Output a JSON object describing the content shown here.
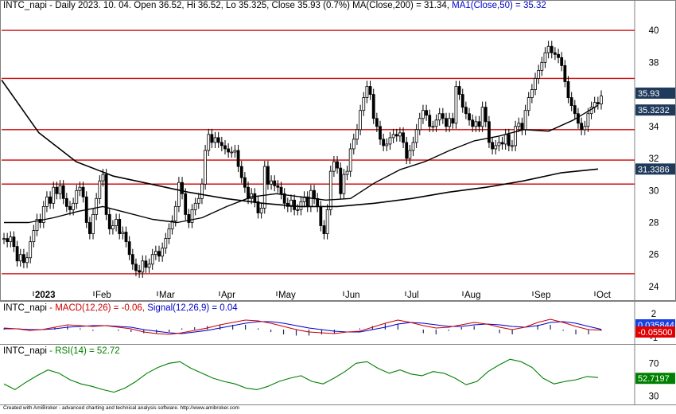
{
  "header": {
    "ticker": "INTC_napi",
    "text_main": " - Daily 2023. 10. 04. Open 36.52, Hi 36.52, Lo 35.325, Close 35.93 (0.7%) MA(Close,200) = 31.34, ",
    "text_ma1": "MA1(Close,50) = 35.32"
  },
  "macd_header": {
    "ticker": "INTC_napi",
    "macd_text": " - MACD(12,26) = -0.06, ",
    "signal_text": "Signal(12,26,9) = 0.04"
  },
  "rsi_header": {
    "ticker": "INTC_napi",
    "rsi_text": " - RSI(14) = 52.72"
  },
  "footer": "Created with AmiBroker - advanced charting and technical analysis software. http://www.amibroker.com",
  "colors": {
    "price": "#000000",
    "ma": "#000000",
    "hline": "#cc0000",
    "macd": "#cc0000",
    "signal": "#0000cc",
    "rsi": "#008000",
    "tag_price": "#1f3a5a",
    "tag_ma200": "#1f3a5a",
    "tag_macd": "#1a3fe0",
    "tag_macd_red": "#e00000",
    "tag_rsi": "#008000"
  },
  "chart_data": [
    {
      "type": "candlestick",
      "title": "INTC_napi - Daily 2023. 10. 04.",
      "ylim": [
        23.5,
        41
      ],
      "y_ticks": [
        24,
        26,
        28,
        30,
        32,
        34,
        36,
        38,
        40
      ],
      "y_tick_labels": [
        "24",
        "26",
        "28",
        "30",
        "32",
        "34",
        "36",
        "38",
        "40"
      ],
      "x_labels": [
        "2023",
        "Feb",
        "Mar",
        "Apr",
        "May",
        "Jun",
        "Jul",
        "Aug",
        "Sep",
        "Oct"
      ],
      "horizontal_lines": [
        40.0,
        37.0,
        33.8,
        31.9,
        30.4,
        24.8
      ],
      "value_tags": {
        "close": "35.93",
        "ma1": "35.3232",
        "ma200": "31.3386"
      },
      "series": [
        {
          "name": "Close",
          "values": [
            27.0,
            26.8,
            27.1,
            26.5,
            25.6,
            26.0,
            25.5,
            25.8,
            26.8,
            27.5,
            28.2,
            28.0,
            29.0,
            29.6,
            29.2,
            30.2,
            29.8,
            30.3,
            29.5,
            29.0,
            28.8,
            29.2,
            30.0,
            30.2,
            29.6,
            28.0,
            27.3,
            28.5,
            29.5,
            30.6,
            31.0,
            28.5,
            27.6,
            27.8,
            28.2,
            27.3,
            27.4,
            26.8,
            26.0,
            25.4,
            25.0,
            24.9,
            25.6,
            25.2,
            25.4,
            26.0,
            26.2,
            25.9,
            26.4,
            27.0,
            27.6,
            28.1,
            29.0,
            30.5,
            29.8,
            28.5,
            28.0,
            28.8,
            29.2,
            29.5,
            30.4,
            32.5,
            33.5,
            33.0,
            33.3,
            33.0,
            32.8,
            32.6,
            32.4,
            32.4,
            32.5,
            31.5,
            30.8,
            30.2,
            29.5,
            29.8,
            29.3,
            28.6,
            28.9,
            31.5,
            30.4,
            30.6,
            30.3,
            30.2,
            29.8,
            29.2,
            29.0,
            29.4,
            28.8,
            28.8,
            29.3,
            29.6,
            29.0,
            30.0,
            29.5,
            29.0,
            27.8,
            27.3,
            28.8,
            31.2,
            31.8,
            31.4,
            29.8,
            31.0,
            31.2,
            32.6,
            33.2,
            33.8,
            35.0,
            35.8,
            36.5,
            36.0,
            34.5,
            34.0,
            33.2,
            32.8,
            32.9,
            33.3,
            33.5,
            33.4,
            33.6,
            33.0,
            32.0,
            32.5,
            33.0,
            33.8,
            34.5,
            35.0,
            34.7,
            34.0,
            34.0,
            34.4,
            34.8,
            34.5,
            34.0,
            34.5,
            34.2,
            36.5,
            36.0,
            35.2,
            34.8,
            34.4,
            34.0,
            34.3,
            34.0,
            35.2,
            34.3,
            33.0,
            32.6,
            32.8,
            33.0,
            32.9,
            33.5,
            32.8,
            32.8,
            34.0,
            34.2,
            33.8,
            35.0,
            35.8,
            36.3,
            37.0,
            37.5,
            38.0,
            38.6,
            39.0,
            38.6,
            38.5,
            38.3,
            37.8,
            36.8,
            35.8,
            35.3,
            34.8,
            34.2,
            33.8,
            34.0,
            34.8,
            35.2,
            35.5,
            35.4,
            35.9
          ]
        },
        {
          "name": "MA(Close,200)",
          "values": [
            36.9,
            33.6,
            31.8,
            30.9,
            30.4,
            29.9,
            29.5,
            29.2,
            29.0,
            29.0,
            29.2,
            29.5,
            29.9,
            30.2,
            30.6,
            31.1,
            31.34
          ]
        },
        {
          "name": "MA1(Close,50)",
          "values": [
            28.0,
            28.0,
            28.3,
            28.7,
            29.0,
            28.6,
            28.2,
            28.0,
            28.3,
            29.0,
            29.6,
            29.8,
            29.6,
            29.4,
            29.5,
            30.5,
            31.3,
            31.8,
            32.5,
            33.1,
            33.4,
            33.8,
            33.7,
            34.4,
            35.32
          ]
        }
      ]
    },
    {
      "type": "line",
      "title": "INTC_napi - MACD(12,26) = -0.06, Signal(12,26,9) = 0.04",
      "ylim": [
        -1.4,
        2.2
      ],
      "y_ticks": [
        -1,
        2
      ],
      "y_tick_labels": [
        "-1",
        "2"
      ],
      "value_tags": {
        "signal": "0.035844",
        "macd": "-0.05500"
      },
      "series": [
        {
          "name": "MACD(12,26)",
          "values": [
            0.2,
            0.1,
            -0.1,
            0.0,
            0.3,
            0.6,
            0.5,
            0.4,
            0.5,
            0.3,
            0.1,
            -0.3,
            -0.5,
            -0.6,
            -0.4,
            -0.1,
            0.2,
            0.6,
            0.9,
            1.2,
            1.1,
            0.8,
            0.4,
            0.0,
            -0.3,
            -0.4,
            -0.5,
            -0.3,
            -0.2,
            0.3,
            0.8,
            1.2,
            0.9,
            0.5,
            0.2,
            0.3,
            0.6,
            0.9,
            0.7,
            0.3,
            0.0,
            0.3,
            0.9,
            1.3,
            0.9,
            0.4,
            0.0,
            -0.06
          ]
        },
        {
          "name": "Signal(12,26,9)",
          "values": [
            0.1,
            0.1,
            0.0,
            0.0,
            0.1,
            0.3,
            0.4,
            0.5,
            0.5,
            0.4,
            0.3,
            0.0,
            -0.2,
            -0.4,
            -0.5,
            -0.3,
            -0.1,
            0.2,
            0.5,
            0.8,
            1.0,
            1.0,
            0.8,
            0.5,
            0.2,
            0.0,
            -0.2,
            -0.3,
            -0.3,
            0.0,
            0.3,
            0.7,
            0.9,
            0.8,
            0.6,
            0.4,
            0.4,
            0.6,
            0.7,
            0.6,
            0.4,
            0.3,
            0.5,
            0.9,
            1.0,
            0.8,
            0.4,
            0.04
          ]
        }
      ]
    },
    {
      "type": "line",
      "title": "INTC_napi - RSI(14) = 52.72",
      "ylim": [
        22,
        80
      ],
      "y_ticks": [
        30,
        70
      ],
      "y_tick_labels": [
        "30",
        "70"
      ],
      "value_tags": {
        "rsi": "52.7197"
      },
      "series": [
        {
          "name": "RSI(14)",
          "values": [
            45,
            38,
            47,
            55,
            62,
            58,
            50,
            45,
            42,
            38,
            35,
            40,
            48,
            58,
            65,
            70,
            72,
            64,
            58,
            52,
            48,
            45,
            40,
            38,
            42,
            48,
            52,
            55,
            48,
            45,
            52,
            60,
            70,
            72,
            64,
            58,
            62,
            57,
            55,
            60,
            58,
            52,
            44,
            48,
            60,
            68,
            75,
            72,
            65,
            52,
            45,
            48,
            50,
            54,
            52.72
          ]
        }
      ]
    }
  ]
}
